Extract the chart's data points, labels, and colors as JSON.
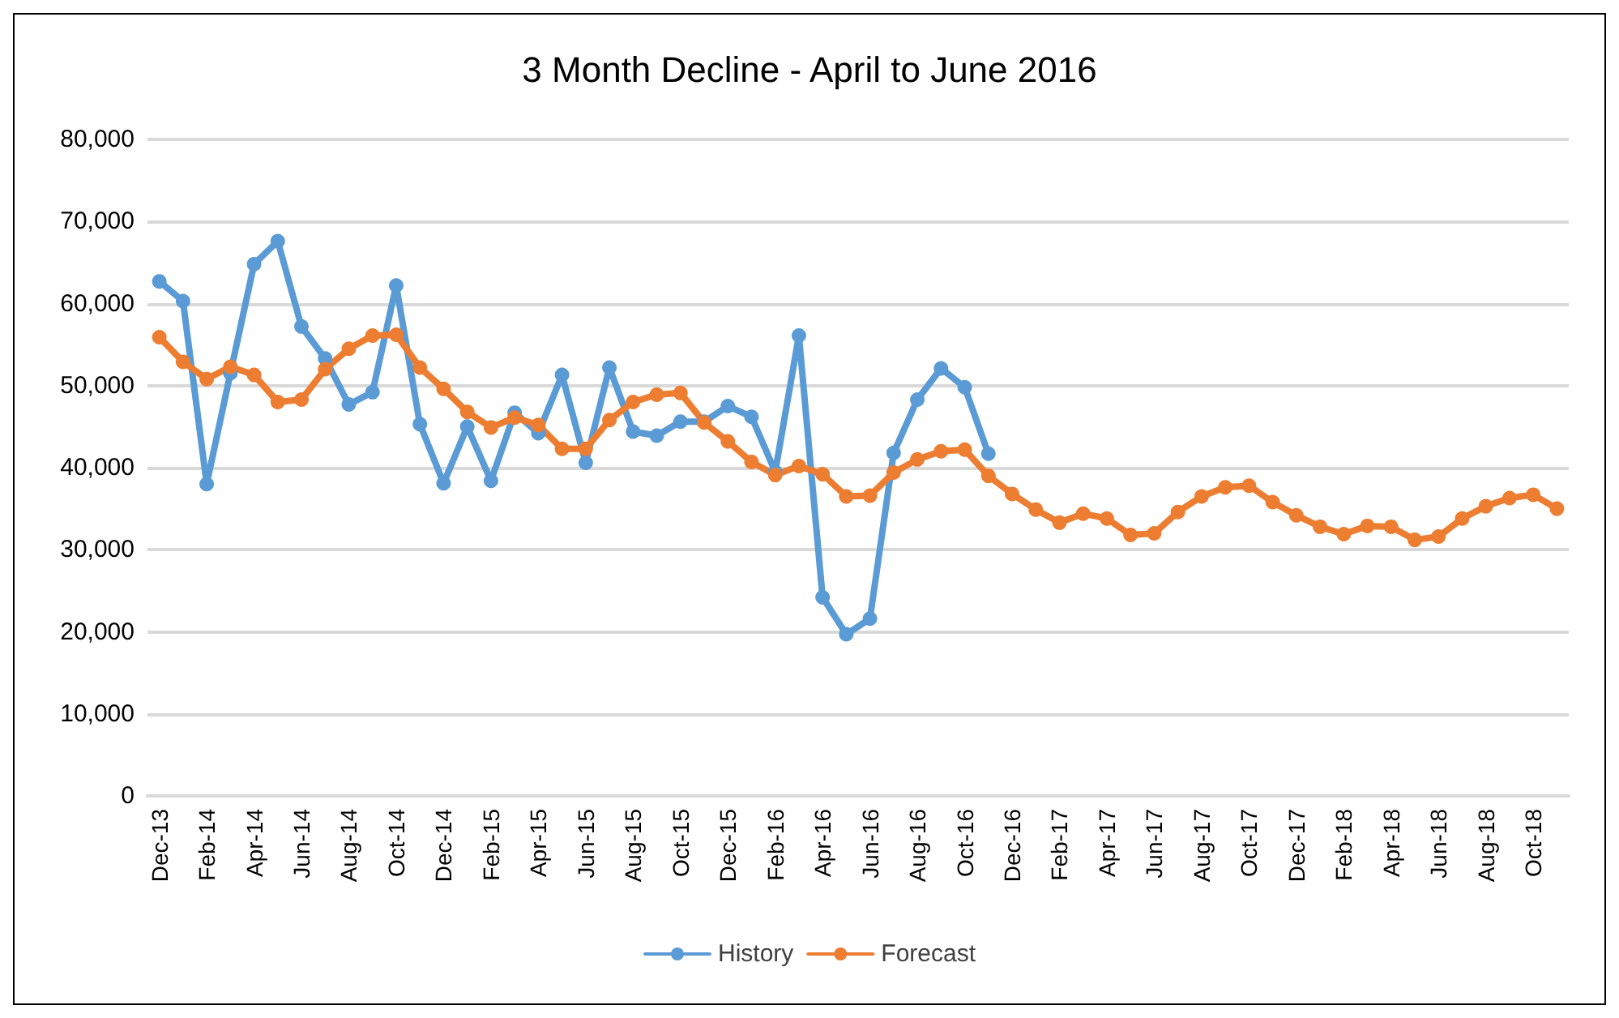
{
  "chart_data": {
    "type": "line",
    "title": "3 Month Decline - April to June 2016",
    "categories": [
      "Dec-13",
      null,
      "Feb-14",
      null,
      "Apr-14",
      null,
      "Jun-14",
      null,
      "Aug-14",
      null,
      "Oct-14",
      null,
      "Dec-14",
      null,
      "Feb-15",
      null,
      "Apr-15",
      null,
      "Jun-15",
      null,
      "Aug-15",
      null,
      "Oct-15",
      null,
      "Dec-15",
      null,
      "Feb-16",
      null,
      "Apr-16",
      null,
      "Jun-16",
      null,
      "Aug-16",
      null,
      "Oct-16",
      null,
      "Dec-16",
      null,
      "Feb-17",
      null,
      "Apr-17",
      null,
      "Jun-17",
      null,
      "Aug-17",
      null,
      "Oct-17",
      null,
      "Dec-17",
      null,
      "Feb-18",
      null,
      "Apr-18",
      null,
      "Jun-18",
      null,
      "Aug-18",
      null,
      "Oct-18",
      null
    ],
    "series": [
      {
        "name": "History",
        "color": "#5b9bd5",
        "values": [
          62700,
          60300,
          38000,
          51500,
          64800,
          67600,
          57200,
          53300,
          47700,
          49200,
          62200,
          45300,
          38100,
          45000,
          38400,
          46700,
          44200,
          51300,
          40600,
          52200,
          44400,
          43900,
          45600,
          45600,
          47500,
          46200,
          39500,
          56100,
          24200,
          19700,
          21600,
          41800,
          48300,
          52100,
          49800,
          41700,
          null,
          null,
          null,
          null,
          null,
          null,
          null,
          null,
          null,
          null,
          null,
          null,
          null,
          null,
          null,
          null,
          null,
          null,
          null,
          null,
          null,
          null,
          null,
          null
        ]
      },
      {
        "name": "Forecast",
        "color": "#ed7d31",
        "values": [
          55900,
          52900,
          50800,
          52300,
          51300,
          48000,
          48300,
          52000,
          54500,
          56100,
          56200,
          52200,
          49600,
          46800,
          44900,
          46100,
          45200,
          42300,
          42300,
          45800,
          48000,
          48900,
          49100,
          45500,
          43200,
          40700,
          39100,
          40200,
          39200,
          36500,
          36600,
          39400,
          41000,
          42000,
          42200,
          39000,
          36800,
          34900,
          33300,
          34400,
          33800,
          31800,
          32000,
          34600,
          36500,
          37600,
          37800,
          35800,
          34200,
          32800,
          31900,
          32900,
          32800,
          31200,
          31600,
          33800,
          35300,
          36300,
          36700,
          35000
        ]
      }
    ],
    "ylim": [
      0,
      80000
    ],
    "yticks": [
      {
        "value": 0,
        "label": "0"
      },
      {
        "value": 10000,
        "label": "10,000"
      },
      {
        "value": 20000,
        "label": "20,000"
      },
      {
        "value": 30000,
        "label": "30,000"
      },
      {
        "value": 40000,
        "label": "40,000"
      },
      {
        "value": 50000,
        "label": "50,000"
      },
      {
        "value": 60000,
        "label": "60,000"
      },
      {
        "value": 70000,
        "label": "70,000"
      },
      {
        "value": 80000,
        "label": "80,000"
      }
    ],
    "grid": "y",
    "legend": "bottom",
    "marker": "circle",
    "line_style": "solid"
  }
}
